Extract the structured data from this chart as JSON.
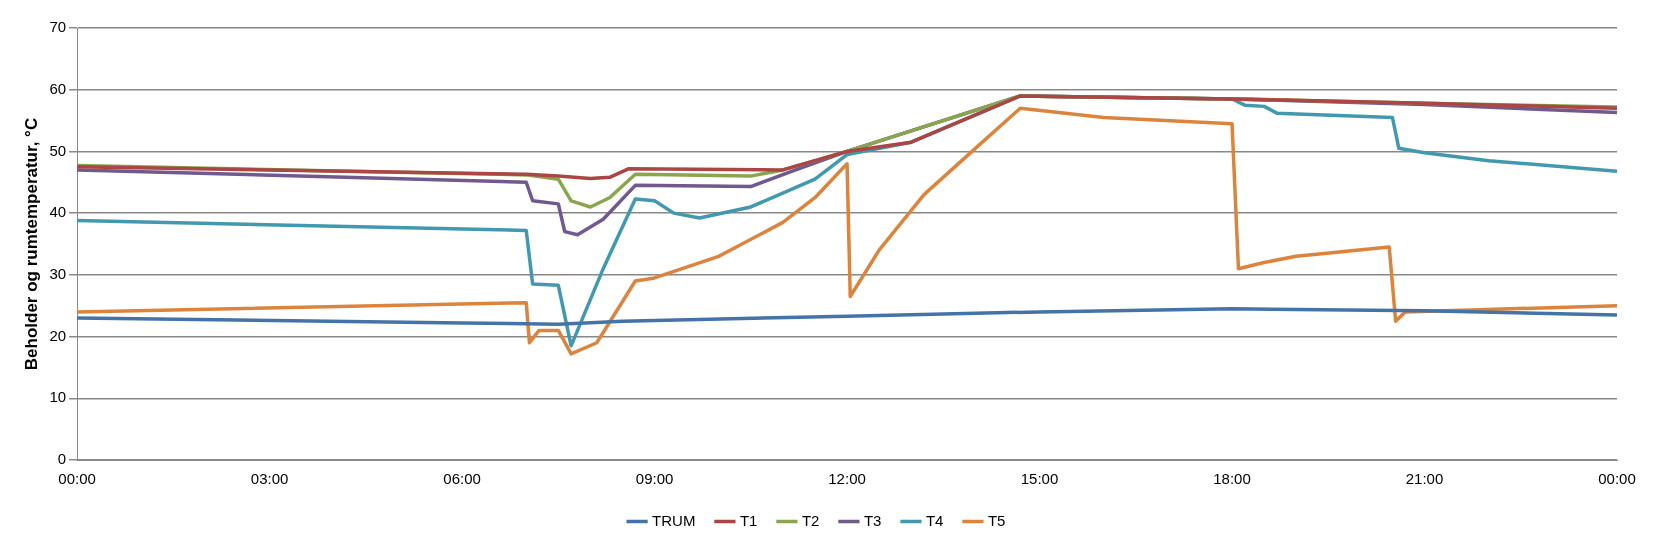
{
  "chart_data": {
    "type": "line",
    "ylabel": "Beholder og rumtemperatur, °C",
    "xlim": [
      0,
      24
    ],
    "ylim": [
      0,
      70
    ],
    "xticks": [
      {
        "value": 0,
        "label": "00:00"
      },
      {
        "value": 3,
        "label": "03:00"
      },
      {
        "value": 6,
        "label": "06:00"
      },
      {
        "value": 9,
        "label": "09:00"
      },
      {
        "value": 12,
        "label": "12:00"
      },
      {
        "value": 15,
        "label": "15:00"
      },
      {
        "value": 18,
        "label": "18:00"
      },
      {
        "value": 21,
        "label": "21:00"
      },
      {
        "value": 24,
        "label": "00:00"
      }
    ],
    "yticks": [
      0,
      10,
      20,
      30,
      40,
      50,
      60,
      70
    ],
    "grid": "y",
    "legend": "bottom",
    "marker": "none",
    "line_style": "solid",
    "series": [
      {
        "name": "TRUM",
        "color": "#4573a7",
        "x": [
          0,
          6,
          7.5,
          8.5,
          12,
          15,
          18,
          21,
          24
        ],
        "values": [
          23,
          22.2,
          22,
          22.5,
          23.3,
          24,
          24.5,
          24.2,
          23.5
        ]
      },
      {
        "name": "T1",
        "color": "#aa4643",
        "x": [
          0,
          7,
          7.5,
          8,
          8.3,
          8.6,
          11,
          12,
          13,
          14.7,
          18,
          21,
          24
        ],
        "values": [
          47.5,
          46.3,
          46,
          45.6,
          45.8,
          47.2,
          47,
          50,
          51.5,
          59,
          58.5,
          57.8,
          57
        ]
      },
      {
        "name": "T2",
        "color": "#89a54e",
        "x": [
          0,
          7,
          7.5,
          7.7,
          8,
          8.3,
          8.7,
          10.5,
          11,
          12,
          14.7,
          18,
          21,
          24
        ],
        "values": [
          47.7,
          46.2,
          45.5,
          42,
          41,
          42.5,
          46.3,
          46,
          47,
          50,
          59,
          58.5,
          57.8,
          57.2
        ]
      },
      {
        "name": "T3",
        "color": "#71588f",
        "x": [
          0,
          7,
          7.1,
          7.5,
          7.6,
          7.8,
          8.2,
          8.7,
          10.5,
          11.2,
          12,
          14.7,
          18,
          21,
          24
        ],
        "values": [
          47,
          45,
          42,
          41.5,
          37,
          36.5,
          39,
          44.5,
          44.3,
          47,
          50,
          59,
          58.5,
          57.6,
          56.3
        ]
      },
      {
        "name": "T4",
        "color": "#4198af",
        "x": [
          0,
          7,
          7.1,
          7.5,
          7.7,
          8.2,
          8.7,
          9,
          9.3,
          9.7,
          10.5,
          11.5,
          12,
          13,
          14.7,
          18,
          18.2,
          18.5,
          18.7,
          20.5,
          20.6,
          21,
          22,
          24
        ],
        "values": [
          38.8,
          37.2,
          28.5,
          28.3,
          18.5,
          31,
          42.3,
          42,
          40,
          39.2,
          41,
          45.5,
          49.5,
          51.5,
          59,
          58.5,
          57.5,
          57.3,
          56.2,
          55.5,
          50.5,
          49.8,
          48.5,
          46.8
        ]
      },
      {
        "name": "T5",
        "color": "#db843d",
        "x": [
          0,
          7,
          7.05,
          7.2,
          7.5,
          7.7,
          8.1,
          8.7,
          9,
          10,
          11,
          11.5,
          12,
          12.05,
          12.5,
          13.2,
          14,
          14.7,
          16,
          18,
          18.1,
          18.5,
          19,
          20.45,
          20.55,
          20.7,
          24
        ],
        "values": [
          24,
          25.5,
          19,
          21,
          21,
          17.2,
          19,
          29,
          29.5,
          33,
          38.5,
          42.5,
          48,
          26.5,
          34,
          43,
          50.5,
          57,
          55.5,
          54.5,
          31,
          32,
          33,
          34.5,
          22.5,
          24,
          25
        ]
      }
    ]
  }
}
